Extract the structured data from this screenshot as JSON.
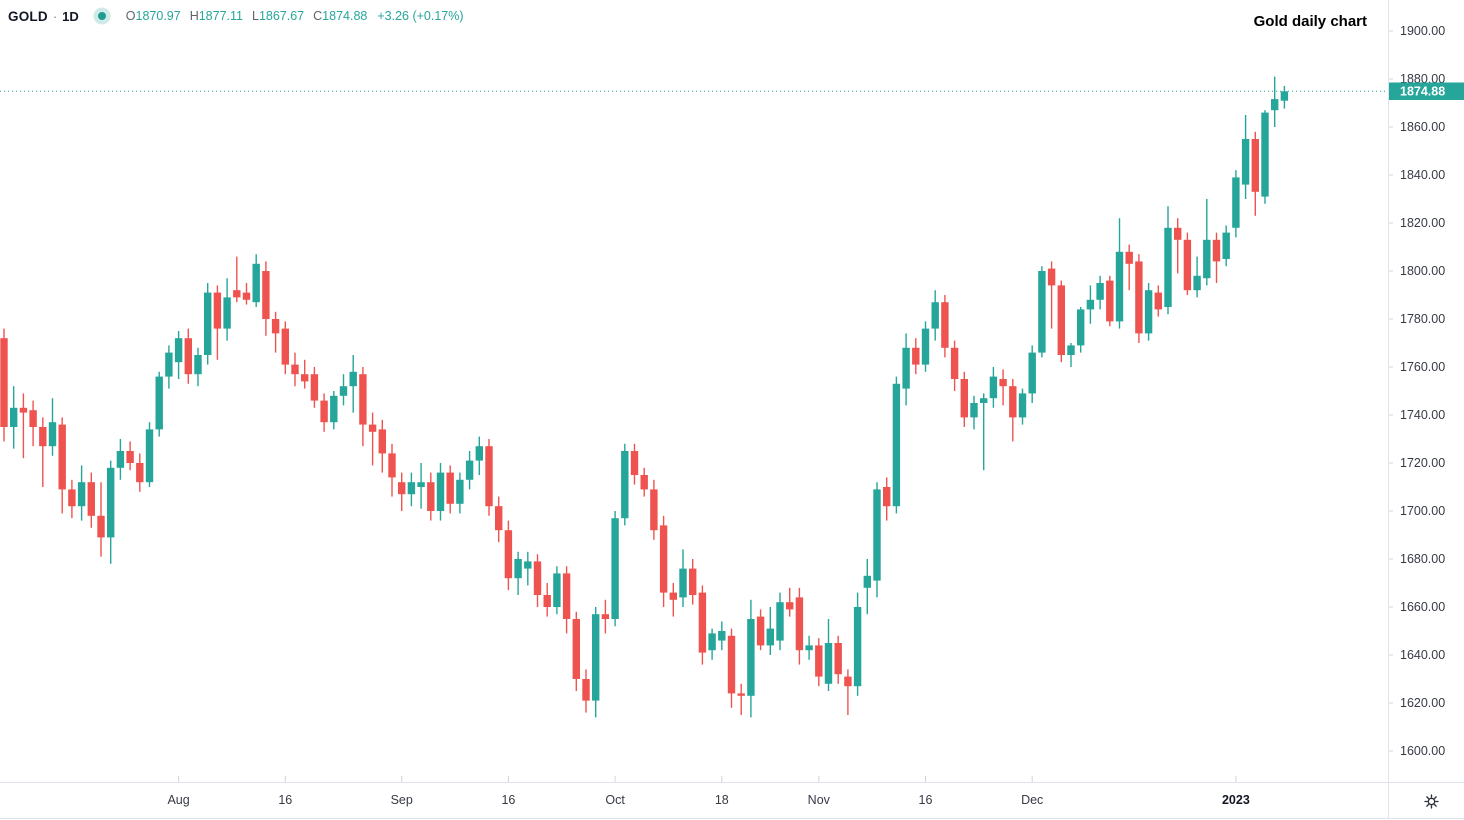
{
  "legend": {
    "symbol": "GOLD",
    "separator": "·",
    "timeframe": "1D",
    "fields": [
      {
        "label": "O",
        "value": "1870.97"
      },
      {
        "label": "H",
        "value": "1877.11"
      },
      {
        "label": "L",
        "value": "1867.67"
      },
      {
        "label": "C",
        "value": "1874.88"
      }
    ],
    "change": "+3.26 (+0.17%)"
  },
  "annotation": {
    "text": "Gold daily chart"
  },
  "price_scale": {
    "tick_labels": [
      "1900.00",
      "1880.00",
      "1860.00",
      "1840.00",
      "1820.00",
      "1800.00",
      "1780.00",
      "1760.00",
      "1740.00",
      "1720.00",
      "1700.00",
      "1680.00",
      "1660.00",
      "1640.00",
      "1620.00",
      "1600.00"
    ],
    "last_price_label": "1874.88"
  },
  "colors": {
    "up": "#26a69a",
    "down": "#ef5350",
    "last_line": "#26a69a",
    "axis_text": "#363a45",
    "axis_text_bold": "#131722",
    "separator": "#e0e3eb",
    "tick": "#d1d4dc",
    "badge_text": "#ffffff"
  },
  "settings": {
    "icon": "gear"
  },
  "chart_data": {
    "type": "candlestick",
    "symbol": "GOLD",
    "interval": "1D",
    "title": "Gold daily chart",
    "grid": "off",
    "legend_position": "top-left",
    "y_axis": {
      "min": 1600,
      "max": 1900,
      "step": 20,
      "unit": "USD"
    },
    "x_ticks": [
      {
        "label": "Aug",
        "index": 18,
        "bold": false
      },
      {
        "label": "16",
        "index": 29,
        "bold": false
      },
      {
        "label": "Sep",
        "index": 41,
        "bold": false
      },
      {
        "label": "16",
        "index": 52,
        "bold": false
      },
      {
        "label": "Oct",
        "index": 63,
        "bold": false
      },
      {
        "label": "18",
        "index": 74,
        "bold": false
      },
      {
        "label": "Nov",
        "index": 84,
        "bold": false
      },
      {
        "label": "16",
        "index": 95,
        "bold": false
      },
      {
        "label": "Dec",
        "index": 106,
        "bold": false
      },
      {
        "label": "2023",
        "index": 127,
        "bold": true
      }
    ],
    "last_quote": {
      "open": 1870.97,
      "high": 1877.11,
      "low": 1867.67,
      "close": 1874.88,
      "change": 3.26,
      "change_pct": 0.17
    },
    "candles": [
      [
        1772,
        1776,
        1729,
        1735
      ],
      [
        1735,
        1752,
        1726,
        1743
      ],
      [
        1743,
        1749,
        1722,
        1741
      ],
      [
        1742,
        1746,
        1727,
        1735
      ],
      [
        1735,
        1739,
        1710,
        1727
      ],
      [
        1727,
        1747,
        1723,
        1737
      ],
      [
        1736,
        1739,
        1699,
        1709
      ],
      [
        1709,
        1713,
        1697,
        1702
      ],
      [
        1702,
        1719,
        1696,
        1712
      ],
      [
        1712,
        1716,
        1693,
        1698
      ],
      [
        1698,
        1712,
        1681,
        1689
      ],
      [
        1689,
        1721,
        1678,
        1718
      ],
      [
        1718,
        1730,
        1713,
        1725
      ],
      [
        1725,
        1729,
        1717,
        1720
      ],
      [
        1720,
        1724,
        1708,
        1712
      ],
      [
        1712,
        1737,
        1710,
        1734
      ],
      [
        1734,
        1758,
        1731,
        1756
      ],
      [
        1756,
        1769,
        1751,
        1766
      ],
      [
        1762,
        1775,
        1755,
        1772
      ],
      [
        1772,
        1776,
        1753,
        1757
      ],
      [
        1757,
        1768,
        1752,
        1765
      ],
      [
        1765,
        1795,
        1761,
        1791
      ],
      [
        1791,
        1794,
        1763,
        1776
      ],
      [
        1776,
        1797,
        1771,
        1789
      ],
      [
        1792,
        1806,
        1787,
        1789
      ],
      [
        1791,
        1795,
        1786,
        1788
      ],
      [
        1787,
        1807,
        1785,
        1803
      ],
      [
        1800,
        1804,
        1773,
        1780
      ],
      [
        1780,
        1783,
        1766,
        1774
      ],
      [
        1776,
        1779,
        1757,
        1761
      ],
      [
        1761,
        1766,
        1752,
        1757
      ],
      [
        1757,
        1763,
        1751,
        1754
      ],
      [
        1757,
        1760,
        1743,
        1746
      ],
      [
        1746,
        1749,
        1733,
        1737
      ],
      [
        1737,
        1750,
        1734,
        1748
      ],
      [
        1748,
        1757,
        1744,
        1752
      ],
      [
        1752,
        1765,
        1741,
        1758
      ],
      [
        1757,
        1760,
        1727,
        1736
      ],
      [
        1736,
        1741,
        1719,
        1733
      ],
      [
        1734,
        1738,
        1716,
        1724
      ],
      [
        1724,
        1728,
        1706,
        1714
      ],
      [
        1712,
        1716,
        1700,
        1707
      ],
      [
        1707,
        1716,
        1702,
        1712
      ],
      [
        1710,
        1720,
        1701,
        1712
      ],
      [
        1712,
        1716,
        1696,
        1700
      ],
      [
        1700,
        1720,
        1696,
        1716
      ],
      [
        1716,
        1719,
        1699,
        1703
      ],
      [
        1703,
        1716,
        1699,
        1713
      ],
      [
        1713,
        1725,
        1709,
        1721
      ],
      [
        1721,
        1731,
        1715,
        1727
      ],
      [
        1727,
        1730,
        1698,
        1702
      ],
      [
        1702,
        1706,
        1687,
        1692
      ],
      [
        1692,
        1696,
        1667,
        1672
      ],
      [
        1672,
        1683,
        1665,
        1680
      ],
      [
        1676,
        1683,
        1669,
        1679
      ],
      [
        1679,
        1682,
        1660,
        1665
      ],
      [
        1665,
        1670,
        1656,
        1660
      ],
      [
        1660,
        1677,
        1657,
        1674
      ],
      [
        1674,
        1677,
        1649,
        1655
      ],
      [
        1655,
        1658,
        1625,
        1630
      ],
      [
        1630,
        1634,
        1616,
        1621
      ],
      [
        1621,
        1660,
        1614,
        1657
      ],
      [
        1657,
        1663,
        1649,
        1655
      ],
      [
        1655,
        1700,
        1652,
        1697
      ],
      [
        1697,
        1728,
        1694,
        1725
      ],
      [
        1725,
        1728,
        1711,
        1715
      ],
      [
        1715,
        1718,
        1706,
        1709
      ],
      [
        1709,
        1713,
        1688,
        1692
      ],
      [
        1694,
        1698,
        1660,
        1666
      ],
      [
        1666,
        1670,
        1656,
        1663
      ],
      [
        1664,
        1684,
        1660,
        1676
      ],
      [
        1676,
        1680,
        1661,
        1665
      ],
      [
        1666,
        1669,
        1636,
        1641
      ],
      [
        1642,
        1651,
        1638,
        1649
      ],
      [
        1646,
        1654,
        1642,
        1650
      ],
      [
        1648,
        1651,
        1618,
        1624
      ],
      [
        1624,
        1628,
        1615,
        1623
      ],
      [
        1623,
        1663,
        1614,
        1655
      ],
      [
        1656,
        1659,
        1642,
        1644
      ],
      [
        1644,
        1660,
        1640,
        1651
      ],
      [
        1646,
        1666,
        1642,
        1662
      ],
      [
        1662,
        1668,
        1656,
        1659
      ],
      [
        1664,
        1668,
        1636,
        1642
      ],
      [
        1642,
        1648,
        1638,
        1644
      ],
      [
        1644,
        1647,
        1627,
        1631
      ],
      [
        1628,
        1655,
        1625,
        1645
      ],
      [
        1645,
        1648,
        1628,
        1632
      ],
      [
        1631,
        1634,
        1615,
        1627
      ],
      [
        1627,
        1666,
        1623,
        1660
      ],
      [
        1668,
        1680,
        1657,
        1673
      ],
      [
        1671,
        1712,
        1664,
        1709
      ],
      [
        1710,
        1714,
        1696,
        1702
      ],
      [
        1702,
        1756,
        1699,
        1753
      ],
      [
        1751,
        1774,
        1744,
        1768
      ],
      [
        1768,
        1772,
        1757,
        1761
      ],
      [
        1761,
        1779,
        1758,
        1776
      ],
      [
        1776,
        1792,
        1771,
        1787
      ],
      [
        1787,
        1790,
        1764,
        1768
      ],
      [
        1768,
        1771,
        1750,
        1755
      ],
      [
        1755,
        1758,
        1735,
        1739
      ],
      [
        1739,
        1748,
        1734,
        1745
      ],
      [
        1745,
        1749,
        1717,
        1747
      ],
      [
        1747,
        1760,
        1743,
        1756
      ],
      [
        1755,
        1759,
        1744,
        1752
      ],
      [
        1752,
        1755,
        1729,
        1739
      ],
      [
        1739,
        1751,
        1736,
        1749
      ],
      [
        1749,
        1769,
        1745,
        1766
      ],
      [
        1766,
        1802,
        1764,
        1800
      ],
      [
        1801,
        1804,
        1776,
        1794
      ],
      [
        1794,
        1796,
        1762,
        1765
      ],
      [
        1765,
        1770,
        1760,
        1769
      ],
      [
        1769,
        1785,
        1766,
        1784
      ],
      [
        1784,
        1794,
        1778,
        1788
      ],
      [
        1788,
        1798,
        1784,
        1795
      ],
      [
        1796,
        1798,
        1777,
        1779
      ],
      [
        1779,
        1822,
        1776,
        1808
      ],
      [
        1808,
        1811,
        1792,
        1803
      ],
      [
        1804,
        1807,
        1770,
        1774
      ],
      [
        1774,
        1795,
        1771,
        1792
      ],
      [
        1791,
        1794,
        1781,
        1784
      ],
      [
        1785,
        1827,
        1782,
        1818
      ],
      [
        1818,
        1822,
        1799,
        1813
      ],
      [
        1813,
        1816,
        1790,
        1792
      ],
      [
        1792,
        1806,
        1789,
        1798
      ],
      [
        1797,
        1830,
        1794,
        1813
      ],
      [
        1813,
        1816,
        1795,
        1804
      ],
      [
        1805,
        1819,
        1802,
        1816
      ],
      [
        1818,
        1842,
        1814,
        1839
      ],
      [
        1836,
        1865,
        1830,
        1855
      ],
      [
        1855,
        1858,
        1823,
        1833
      ],
      [
        1831,
        1867,
        1828,
        1866
      ],
      [
        1867,
        1881,
        1860,
        1871.62
      ],
      [
        1870.97,
        1877.11,
        1867.67,
        1874.88
      ]
    ]
  }
}
